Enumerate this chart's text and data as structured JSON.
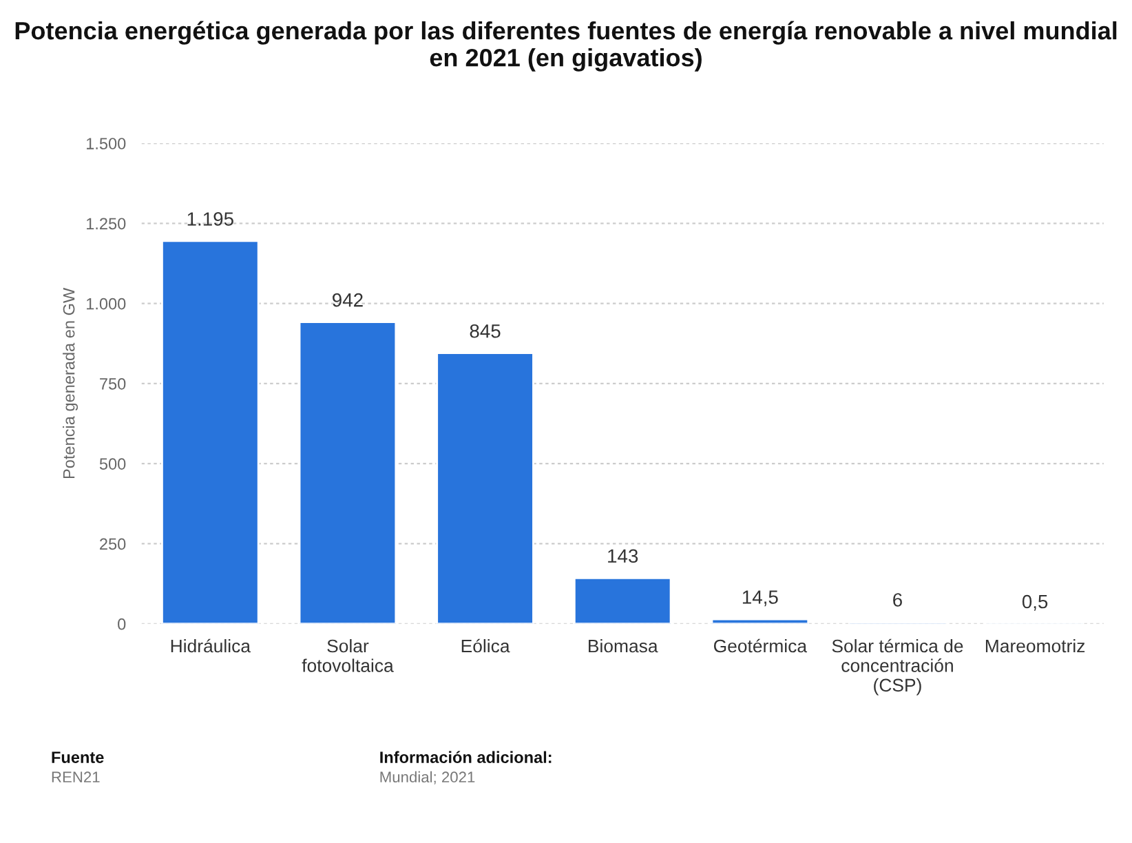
{
  "chart_data": {
    "type": "bar",
    "title": "Potencia energética generada por las diferentes fuentes de energía renovable a nivel mundial en 2021 (en gigavatios)",
    "ylabel": "Potencia generada en GW",
    "categories": [
      "Hidráulica",
      "Solar\nfotovoltaica",
      "Eólica",
      "Biomasa",
      "Geotérmica",
      "Solar térmica de\nconcentración\n(CSP)",
      "Mareomotriz"
    ],
    "values": [
      1195,
      942,
      845,
      143,
      14.5,
      6,
      0.5
    ],
    "value_labels": [
      "1.195",
      "942",
      "845",
      "143",
      "14,5",
      "6",
      "0,5"
    ],
    "color": "#2874dc",
    "ylim": [
      0,
      1500
    ],
    "yticks": [
      {
        "value": 0,
        "label": "0"
      },
      {
        "value": 250,
        "label": "250"
      },
      {
        "value": 500,
        "label": "500"
      },
      {
        "value": 750,
        "label": "750"
      },
      {
        "value": 1000,
        "label": "1.000"
      },
      {
        "value": 1250,
        "label": "1.250"
      },
      {
        "value": 1500,
        "label": "1.500"
      }
    ],
    "grid": "y",
    "annotations": [
      "Fuente",
      "REN21",
      "Información adicional:",
      "Mundial; 2021"
    ]
  }
}
